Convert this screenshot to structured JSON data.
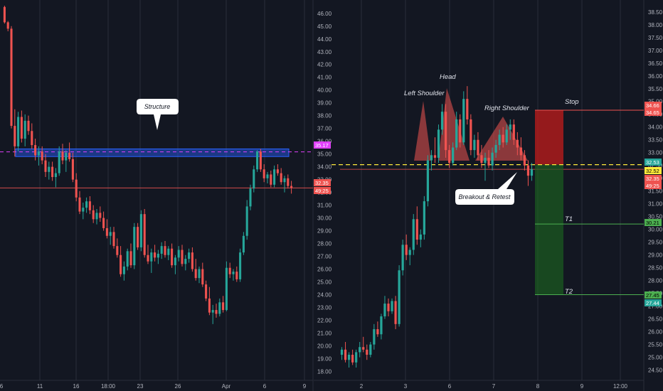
{
  "colors": {
    "background": "#131722",
    "up": "#26a69a",
    "down": "#ef5350",
    "grid": "#2a2e39",
    "axis_text": "#b2b5be",
    "zone_blue": "#2962ff",
    "magenta": "#e040fb",
    "yellow": "#ffeb3b",
    "stop_red": "#b71c1c",
    "target_green": "#1b5e20"
  },
  "chart_data": [
    {
      "type": "candlestick",
      "panel": "left",
      "ylim": [
        17.3,
        46.6
      ],
      "y_ticks": [
        "46.00",
        "45.00",
        "44.00",
        "43.00",
        "42.00",
        "41.00",
        "40.00",
        "39.00",
        "38.00",
        "37.00",
        "36.00",
        "35.00",
        "34.00",
        "33.00",
        "32.00",
        "31.00",
        "30.00",
        "29.00",
        "28.00",
        "27.00",
        "26.00",
        "25.00",
        "24.00",
        "23.00",
        "22.00",
        "21.00",
        "20.00",
        "19.00",
        "18.00"
      ],
      "x_ticks": [
        "6",
        "11",
        "16",
        "18:00",
        "23",
        "26",
        "Apr",
        "6",
        "9"
      ],
      "structure_zone": [
        34.8,
        35.4
      ],
      "structure_label": "Structure",
      "level_magenta": 35.17,
      "level_red": 32.35,
      "price_tags": [
        {
          "text": "35.17",
          "color": "#e040fb"
        },
        {
          "text": "32.35",
          "color": "#ef5350"
        },
        {
          "text": "49:25",
          "color": "#ef5350"
        }
      ],
      "ohlc": [
        [
          46.5,
          46.6,
          45.2,
          45.3
        ],
        [
          45.3,
          45.4,
          44.6,
          44.8
        ],
        [
          44.8,
          45.0,
          37.0,
          37.2
        ],
        [
          37.2,
          38.5,
          34.8,
          35.6
        ],
        [
          35.6,
          38.3,
          35.2,
          37.9
        ],
        [
          37.9,
          38.4,
          35.9,
          36.2
        ],
        [
          36.2,
          38.1,
          35.6,
          37.6
        ],
        [
          37.6,
          38.0,
          36.5,
          36.8
        ],
        [
          36.8,
          37.4,
          35.4,
          35.7
        ],
        [
          35.7,
          36.2,
          34.5,
          34.9
        ],
        [
          34.9,
          35.6,
          34.1,
          35.2
        ],
        [
          35.2,
          35.6,
          34.2,
          34.5
        ],
        [
          34.5,
          35.0,
          33.2,
          33.6
        ],
        [
          33.6,
          34.4,
          33.0,
          34.0
        ],
        [
          34.0,
          34.4,
          32.9,
          33.2
        ],
        [
          33.2,
          33.9,
          32.4,
          33.5
        ],
        [
          33.5,
          35.6,
          33.3,
          35.2
        ],
        [
          35.2,
          35.8,
          34.2,
          34.5
        ],
        [
          34.5,
          35.3,
          33.6,
          35.1
        ],
        [
          35.1,
          35.9,
          34.4,
          34.6
        ],
        [
          34.6,
          35.1,
          32.8,
          33.0
        ],
        [
          33.0,
          33.5,
          31.3,
          31.6
        ],
        [
          31.6,
          32.1,
          30.3,
          30.5
        ],
        [
          30.5,
          31.2,
          29.9,
          30.8
        ],
        [
          30.8,
          31.6,
          30.4,
          31.3
        ],
        [
          31.3,
          31.7,
          30.3,
          30.6
        ],
        [
          30.6,
          31.0,
          29.6,
          29.9
        ],
        [
          29.9,
          30.7,
          29.5,
          30.4
        ],
        [
          30.4,
          30.9,
          29.7,
          30.0
        ],
        [
          30.0,
          30.5,
          29.0,
          29.2
        ],
        [
          29.2,
          29.9,
          28.4,
          28.6
        ],
        [
          28.6,
          29.3,
          27.9,
          28.9
        ],
        [
          28.9,
          29.3,
          27.6,
          27.8
        ],
        [
          27.8,
          28.4,
          26.9,
          27.1
        ],
        [
          27.1,
          27.8,
          25.4,
          25.6
        ],
        [
          25.6,
          26.6,
          25.1,
          26.2
        ],
        [
          26.2,
          27.6,
          25.9,
          27.4
        ],
        [
          27.4,
          28.0,
          26.1,
          26.3
        ],
        [
          26.3,
          29.6,
          26.0,
          29.3
        ],
        [
          29.3,
          29.6,
          27.5,
          27.7
        ],
        [
          27.7,
          30.6,
          27.4,
          30.3
        ],
        [
          30.3,
          30.7,
          26.9,
          27.1
        ],
        [
          27.1,
          27.9,
          26.4,
          26.6
        ],
        [
          26.6,
          27.6,
          25.7,
          27.3
        ],
        [
          27.3,
          27.9,
          26.6,
          26.9
        ],
        [
          26.9,
          27.5,
          26.4,
          27.2
        ],
        [
          27.2,
          28.1,
          26.8,
          27.8
        ],
        [
          27.8,
          28.2,
          26.9,
          27.1
        ],
        [
          27.1,
          27.8,
          26.7,
          27.6
        ],
        [
          27.6,
          28.0,
          26.1,
          26.3
        ],
        [
          26.3,
          27.1,
          25.6,
          26.9
        ],
        [
          26.9,
          27.8,
          26.6,
          27.5
        ],
        [
          27.5,
          27.9,
          26.2,
          26.4
        ],
        [
          26.4,
          27.1,
          25.9,
          26.8
        ],
        [
          26.8,
          27.6,
          26.5,
          27.3
        ],
        [
          27.3,
          27.7,
          25.8,
          26.0
        ],
        [
          26.0,
          26.8,
          25.1,
          25.3
        ],
        [
          25.3,
          26.2,
          24.9,
          26.0
        ],
        [
          26.0,
          26.5,
          24.6,
          24.8
        ],
        [
          24.8,
          25.1,
          23.5,
          23.7
        ],
        [
          23.7,
          24.6,
          22.4,
          22.6
        ],
        [
          22.6,
          23.2,
          21.7,
          22.8
        ],
        [
          22.8,
          23.3,
          22.2,
          22.5
        ],
        [
          22.5,
          23.7,
          22.3,
          23.4
        ],
        [
          23.4,
          23.9,
          22.6,
          22.8
        ],
        [
          22.8,
          26.6,
          22.7,
          26.1
        ],
        [
          26.1,
          26.5,
          25.3,
          25.6
        ],
        [
          25.6,
          26.0,
          25.1,
          25.8
        ],
        [
          25.8,
          26.2,
          25.0,
          25.2
        ],
        [
          25.2,
          27.6,
          25.0,
          27.3
        ],
        [
          27.3,
          28.9,
          27.1,
          28.6
        ],
        [
          28.6,
          31.4,
          28.3,
          30.9
        ],
        [
          30.9,
          32.6,
          30.6,
          32.3
        ],
        [
          32.3,
          34.1,
          32.0,
          33.8
        ],
        [
          33.8,
          35.3,
          33.6,
          35.2
        ],
        [
          35.2,
          35.4,
          33.6,
          33.8
        ],
        [
          33.8,
          34.2,
          32.8,
          33.1
        ],
        [
          33.1,
          33.6,
          32.7,
          33.4
        ],
        [
          33.4,
          33.7,
          32.4,
          32.6
        ],
        [
          32.6,
          34.1,
          32.4,
          33.8
        ],
        [
          33.8,
          34.2,
          33.3,
          33.5
        ],
        [
          33.5,
          33.9,
          32.6,
          32.8
        ],
        [
          32.8,
          33.3,
          32.0,
          33.1
        ],
        [
          33.1,
          33.4,
          32.3,
          32.5
        ],
        [
          32.5,
          32.9,
          31.9,
          32.35
        ]
      ]
    },
    {
      "type": "candlestick",
      "panel": "right",
      "ylim": [
        24.1,
        38.8
      ],
      "y_ticks": [
        "38.50",
        "38.00",
        "37.50",
        "37.00",
        "36.50",
        "36.00",
        "35.50",
        "35.00",
        "34.50",
        "34.00",
        "33.50",
        "33.00",
        "32.50",
        "32.00",
        "31.50",
        "31.00",
        "30.50",
        "30.00",
        "29.50",
        "29.00",
        "28.50",
        "28.00",
        "27.50",
        "27.00",
        "26.50",
        "26.00",
        "25.50",
        "25.00",
        "24.50"
      ],
      "x_ticks": [
        "2",
        "3",
        "6",
        "7",
        "8",
        "9",
        "12:00"
      ],
      "neckline": 32.35,
      "level_yellow": 32.53,
      "level_stop": 34.66,
      "level_t1": 30.21,
      "level_t2": 27.45,
      "entry": 32.53,
      "labels": {
        "left_shoulder": "Left Shoulder",
        "head": "Head",
        "right_shoulder": "Right Shoulder",
        "breakout": "Breakout & Retest",
        "stop": "Stop",
        "t1": "T1",
        "t2": "T2"
      },
      "price_tags": [
        {
          "text": "34.66",
          "color": "#ef5350"
        },
        {
          "text": "34.65",
          "color": "#ef5350"
        },
        {
          "text": "32.53",
          "color": "#26a69a"
        },
        {
          "text": "32.52",
          "color": "#ffeb3b"
        },
        {
          "text": "32.35",
          "color": "#ef5350"
        },
        {
          "text": "49:25",
          "color": "#ef5350"
        },
        {
          "text": "30.21",
          "color": "#4caf50"
        },
        {
          "text": "27.45",
          "color": "#4caf50"
        },
        {
          "text": "27.44",
          "color": "#26a69a"
        }
      ],
      "ohlc": [
        [
          25.1,
          25.4,
          24.9,
          25.3
        ],
        [
          25.3,
          25.6,
          24.8,
          24.9
        ],
        [
          24.9,
          25.2,
          24.6,
          25.1
        ],
        [
          25.1,
          25.3,
          24.7,
          24.8
        ],
        [
          24.8,
          25.3,
          24.6,
          25.2
        ],
        [
          25.2,
          25.6,
          25.0,
          25.4
        ],
        [
          25.4,
          25.8,
          25.2,
          25.3
        ],
        [
          25.3,
          25.5,
          24.9,
          25.1
        ],
        [
          25.1,
          25.6,
          25.0,
          25.5
        ],
        [
          25.5,
          26.3,
          25.3,
          26.1
        ],
        [
          26.1,
          26.4,
          25.8,
          25.9
        ],
        [
          25.9,
          26.7,
          25.7,
          26.6
        ],
        [
          26.6,
          27.4,
          26.5,
          27.1
        ],
        [
          27.1,
          27.3,
          26.6,
          26.8
        ],
        [
          26.8,
          27.3,
          26.7,
          27.2
        ],
        [
          27.2,
          27.4,
          26.1,
          26.3
        ],
        [
          26.3,
          28.6,
          26.2,
          28.4
        ],
        [
          28.4,
          29.6,
          28.2,
          29.4
        ],
        [
          29.4,
          29.8,
          28.8,
          29.0
        ],
        [
          29.0,
          29.3,
          28.6,
          29.2
        ],
        [
          29.2,
          30.6,
          29.0,
          30.4
        ],
        [
          30.4,
          30.9,
          29.4,
          29.6
        ],
        [
          29.6,
          30.0,
          29.3,
          29.8
        ],
        [
          29.8,
          31.3,
          29.6,
          31.1
        ],
        [
          31.1,
          32.9,
          30.9,
          32.7
        ],
        [
          32.7,
          33.1,
          32.3,
          32.9
        ],
        [
          32.9,
          33.6,
          32.6,
          32.8
        ],
        [
          32.8,
          34.1,
          32.6,
          33.9
        ],
        [
          33.9,
          34.9,
          33.7,
          34.6
        ],
        [
          34.6,
          34.9,
          32.8,
          33.1
        ],
        [
          33.1,
          33.3,
          32.4,
          32.6
        ],
        [
          32.6,
          33.4,
          32.5,
          33.2
        ],
        [
          33.2,
          34.6,
          33.1,
          34.3
        ],
        [
          34.3,
          34.5,
          33.2,
          33.4
        ],
        [
          33.4,
          35.4,
          33.3,
          35.1
        ],
        [
          35.1,
          35.6,
          34.1,
          34.3
        ],
        [
          34.3,
          34.5,
          32.9,
          33.1
        ],
        [
          33.1,
          33.7,
          32.8,
          33.5
        ],
        [
          33.5,
          33.8,
          32.7,
          32.9
        ],
        [
          32.9,
          33.3,
          32.4,
          32.6
        ],
        [
          32.6,
          33.0,
          31.9,
          32.8
        ],
        [
          32.8,
          33.1,
          32.4,
          32.5
        ],
        [
          32.5,
          33.2,
          32.3,
          33.0
        ],
        [
          33.0,
          33.5,
          32.8,
          33.3
        ],
        [
          33.3,
          33.9,
          33.1,
          33.7
        ],
        [
          33.7,
          34.0,
          33.2,
          33.4
        ],
        [
          33.4,
          34.1,
          33.3,
          33.9
        ],
        [
          33.9,
          34.3,
          33.5,
          34.1
        ],
        [
          34.1,
          34.3,
          33.3,
          33.5
        ],
        [
          33.5,
          33.8,
          32.9,
          33.2
        ],
        [
          33.2,
          33.6,
          32.7,
          32.9
        ],
        [
          32.9,
          33.1,
          32.3,
          32.5
        ],
        [
          32.5,
          32.7,
          31.7,
          32.1
        ],
        [
          32.1,
          32.6,
          31.9,
          32.35
        ]
      ]
    }
  ]
}
